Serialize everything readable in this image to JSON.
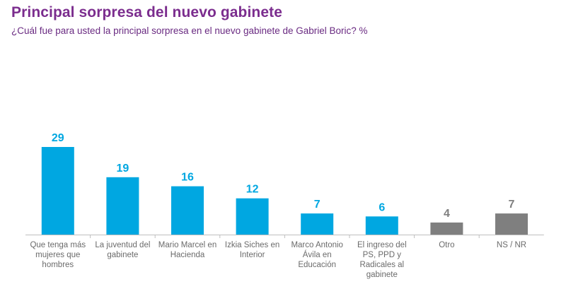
{
  "header": {
    "title": "Principal sorpresa del nuevo gabinete",
    "subtitle": "¿Cuál fue para usted la principal sorpresa en el nuevo gabinete de Gabriel Boric? %"
  },
  "colors": {
    "title": "#7b2d8e",
    "subtitle": "#6a2b82",
    "primary_bar": "#00a7e1",
    "other_bar": "#7f7f7f",
    "axis": "#bfbfbf",
    "category_text": "#6b6b6b"
  },
  "chart_data": {
    "type": "bar",
    "title": "Principal sorpresa del nuevo gabinete",
    "subtitle": "¿Cuál fue para usted la principal sorpresa en el nuevo gabinete de Gabriel Boric? %",
    "xlabel": "",
    "ylabel": "",
    "ylim": [
      0,
      30
    ],
    "grid": false,
    "legend": "none",
    "categories": [
      "Que tenga más mujeres que hombres",
      "La juventud del gabinete",
      "Mario Marcel en Hacienda",
      "Izkia Siches en Interior",
      "Marco Antonio Ávila en Educación",
      "El ingreso del PS, PPD y Radicales al gabinete",
      "Otro",
      "NS / NR"
    ],
    "category_lines": [
      [
        "Que tenga más",
        "mujeres que",
        "hombres"
      ],
      [
        "La juventud del",
        "gabinete"
      ],
      [
        "Mario Marcel en",
        "Hacienda"
      ],
      [
        "Izkia Siches en",
        "Interior"
      ],
      [
        "Marco Antonio",
        "Ávila en",
        "Educación"
      ],
      [
        "El ingreso del",
        "PS, PPD y",
        "Radicales al",
        "gabinete"
      ],
      [
        "Otro"
      ],
      [
        "NS / NR"
      ]
    ],
    "values": [
      29,
      19,
      16,
      12,
      7,
      6,
      4,
      7
    ],
    "bar_colors": [
      "#00a7e1",
      "#00a7e1",
      "#00a7e1",
      "#00a7e1",
      "#00a7e1",
      "#00a7e1",
      "#7f7f7f",
      "#7f7f7f"
    ],
    "label_colors": [
      "#00a7e1",
      "#00a7e1",
      "#00a7e1",
      "#00a7e1",
      "#00a7e1",
      "#00a7e1",
      "#7f7f7f",
      "#7f7f7f"
    ]
  }
}
